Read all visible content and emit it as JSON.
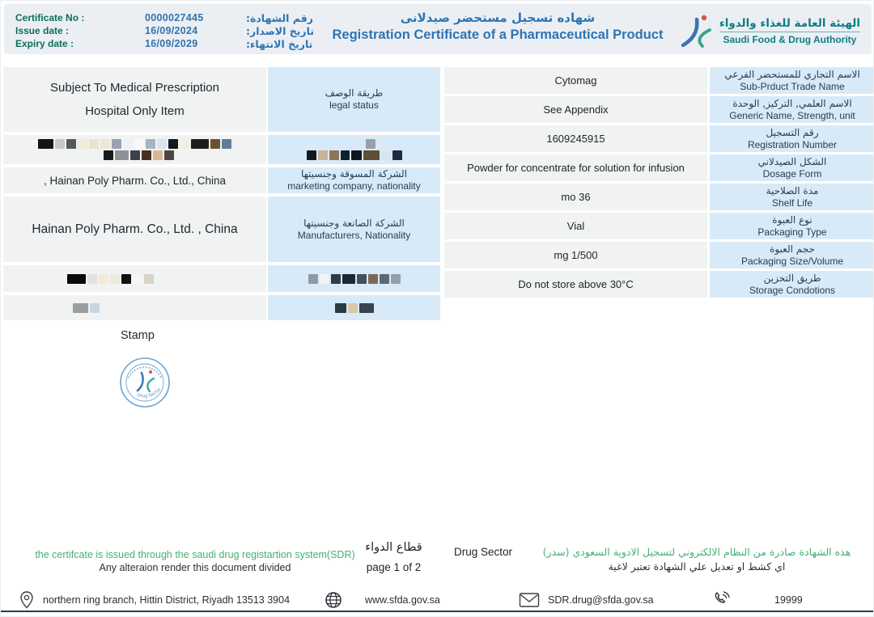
{
  "header": {
    "certificate": {
      "rows": [
        {
          "label_en": "Certificate No :",
          "value": "0000027445",
          "label_ar": "رقم الشهادة:"
        },
        {
          "label_en": "Issue date :",
          "value": "16/09/2024",
          "label_ar": "تاريخ الاصدار:"
        },
        {
          "label_en": "Expiry date :",
          "value": "16/09/2029",
          "label_ar": "تاريخ الانتهاء:"
        }
      ]
    },
    "title_ar": "شهاده تسجيل مستحضر صيدلانى",
    "title_en": "Registration Certificate of a Pharmaceutical Product",
    "authority_ar": "الهيئة العامة للغذاء والدواء",
    "authority_en": "Saudi Food & Drug Authority"
  },
  "left_table": {
    "rows": [
      {
        "value_line1": "Subject To Medical Prescription",
        "value_line2": "Hospital Only Item",
        "label_ar": "طريقة الوصف",
        "label_en": "legal status"
      },
      {
        "redacted": "true"
      },
      {
        "value": ", Hainan Poly Pharm. Co., Ltd., China",
        "label_ar": "الشركة المسوقة وجنسيتها",
        "label_en": "marketing company, nationality"
      },
      {
        "value": "Hainan Poly Pharm. Co., Ltd. , China",
        "label_ar": "الشركة الصانعة وجنسيتها",
        "label_en": "Manufacturers, Nationality"
      },
      {
        "redacted": "true"
      },
      {
        "redacted": "true"
      }
    ]
  },
  "right_table": {
    "rows": [
      {
        "value": "Cytomag",
        "label_ar": "الاسم التجاري للمستحضر الفرعي",
        "label_en": "Sub-Prduct Trade Name"
      },
      {
        "value": "See Appendix",
        "label_ar": "الاسم العلمي, التركيز, الوحدة",
        "label_en": "Generic Name, Strength, unit"
      },
      {
        "value": "1609245915",
        "label_ar": "رقم التسجيل",
        "label_en": "Registration Number"
      },
      {
        "value": "Powder for concentrate for solution for infusion",
        "label_ar": "الشكل الصيدلاني",
        "label_en": "Dosage Form"
      },
      {
        "value": "mo 36",
        "label_ar": "مدة الصلاحية",
        "label_en": "Shelf Life"
      },
      {
        "value": "Vial",
        "label_ar": "نوع العبوة",
        "label_en": "Packaging Type"
      },
      {
        "value": "mg 1/500",
        "label_ar": "حجم العبوة",
        "label_en": "Packaging Size/Volume"
      },
      {
        "value": "Do not store above 30°C",
        "label_ar": "طريق التخزين",
        "label_en": "Storage Condotions"
      }
    ]
  },
  "stamp": {
    "label": "Stamp",
    "stamp_text": "Drug Sector"
  },
  "notes": {
    "left_green": "the certifcate is issued through the saudi drug registartion system(SDR)",
    "left_dark": "Any alteraion render this document divided",
    "sector_ar": "قطاع الدواء",
    "page": "page 1 of 2",
    "sector_en": "Drug Sector",
    "right_green_ar": "هذه الشهادة صادرة من النظام الالكتروني لتسجيل الادوية السعودي (سدر)",
    "right_dark_ar": "اي كشط او تعديل علي الشهادة تعتبر لاغية"
  },
  "footer": {
    "address": "northern ring branch, Hittin District, Riyadh 13513 3904",
    "website": "www.sfda.gov.sa",
    "email": "SDR.drug@sfda.gov.sa",
    "phone": "19999"
  },
  "colors": {
    "accent_blue": "#2e74b5",
    "header_label_green": "#0c6e59",
    "note_green": "#45b075",
    "authority_teal": "#0f7d84",
    "label_cell_blue": "#d8eaf8",
    "value_cell_gray": "#f1f2f2",
    "logo_blue": "#3a74ae",
    "logo_green": "#35a489",
    "logo_red": "#d9534f"
  },
  "redactions": {
    "r2v1": [
      "#141414*1.6",
      "#c4c8cc",
      "#54595f",
      "#f3ebd5",
      "#ebe3d1",
      "#eee6d7",
      "#9aa3b5",
      "#eef1f5",
      "#f8fafc",
      "#a9b2c3",
      "#d5e5f1",
      "#17181a",
      "#f3eee3",
      "#1f1d19*1.8",
      "#6b5134",
      "#5e7e98"
    ],
    "r2v2": [
      "#17191c",
      "#8e9298*1.4",
      "#3c4147",
      "#48301f",
      "#d9b795",
      "#4e463f"
    ],
    "r2l1": [
      "#98a1ab"
    ],
    "r2l2": [
      "#15191e",
      "#c9b396",
      "#8a765c",
      "#141e2c*0.9",
      "#0f1722*1.1",
      "#5d4f38*1.7",
      "#d9e6f0",
      "#1c2c3e"
    ],
    "r5v": [
      "#0a0a0a*1.9",
      "#dfe1e3",
      "#f1ebd9",
      "#efe9da",
      "#131210",
      "#f6f6f4",
      "#d8d3c6"
    ],
    "r5l": [
      "#8f9aa4",
      "#f0f4f8",
      "#2e3d49",
      "#1b2834*1.3",
      "#454f58",
      "#7a6a55",
      "#5a6a74",
      "#92a0ab"
    ],
    "r6v": [
      "#9a9da1*1.6",
      "#c9d7e4"
    ],
    "r6l": [
      "#2b3947*1.2",
      "#d9c9a6",
      "#35444f*1.5"
    ]
  }
}
